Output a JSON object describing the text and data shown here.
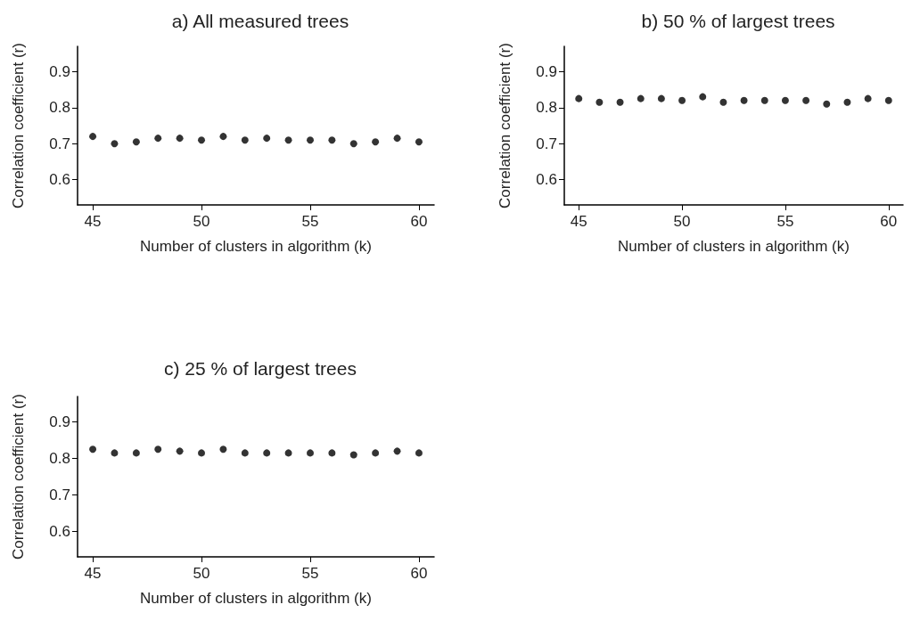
{
  "chart_data": [
    {
      "type": "scatter",
      "title": "a) All measured trees",
      "xlabel": "Number of clusters in algorithm (k)",
      "ylabel": "Correlation coefficient (r)",
      "x": [
        45,
        46,
        47,
        48,
        49,
        50,
        51,
        52,
        53,
        54,
        55,
        56,
        57,
        58,
        59,
        60
      ],
      "series": [
        {
          "color": "#000000",
          "values": [
            0.72,
            0.7,
            0.705,
            0.715,
            0.715,
            0.71,
            0.72,
            0.71,
            0.715,
            0.71,
            0.71,
            0.71,
            0.7,
            0.705,
            0.715,
            0.705
          ]
        }
      ],
      "xlim": [
        44.3,
        60.7
      ],
      "xticks": [
        45,
        50,
        55,
        60
      ],
      "ylim": [
        0.53,
        0.97
      ],
      "yticks": [
        0.6,
        0.7,
        0.8,
        0.9
      ],
      "grid": false,
      "marker": "circle"
    },
    {
      "type": "scatter",
      "title": "b) 50 % of largest trees",
      "xlabel": "Number of clusters in algorithm (k)",
      "ylabel": "Correlation coefficient (r)",
      "x": [
        45,
        46,
        47,
        48,
        49,
        50,
        51,
        52,
        53,
        54,
        55,
        56,
        57,
        58,
        59,
        60
      ],
      "series": [
        {
          "color": "#000000",
          "values": [
            0.825,
            0.815,
            0.815,
            0.825,
            0.825,
            0.82,
            0.83,
            0.815,
            0.82,
            0.82,
            0.82,
            0.82,
            0.81,
            0.815,
            0.825,
            0.82
          ]
        }
      ],
      "xlim": [
        44.3,
        60.7
      ],
      "xticks": [
        45,
        50,
        55,
        60
      ],
      "ylim": [
        0.53,
        0.97
      ],
      "yticks": [
        0.6,
        0.7,
        0.8,
        0.9
      ],
      "grid": false,
      "marker": "circle"
    },
    {
      "type": "scatter",
      "title": "c) 25 % of largest trees",
      "xlabel": "Number of clusters in algorithm (k)",
      "ylabel": "Correlation coefficient (r)",
      "x": [
        45,
        46,
        47,
        48,
        49,
        50,
        51,
        52,
        53,
        54,
        55,
        56,
        57,
        58,
        59,
        60
      ],
      "series": [
        {
          "color": "#000000",
          "values": [
            0.825,
            0.815,
            0.815,
            0.825,
            0.82,
            0.815,
            0.825,
            0.815,
            0.815,
            0.815,
            0.815,
            0.815,
            0.81,
            0.815,
            0.82,
            0.815
          ]
        }
      ],
      "xlim": [
        44.3,
        60.7
      ],
      "xticks": [
        45,
        50,
        55,
        60
      ],
      "ylim": [
        0.53,
        0.97
      ],
      "yticks": [
        0.6,
        0.7,
        0.8,
        0.9
      ],
      "grid": false,
      "marker": "circle"
    }
  ]
}
